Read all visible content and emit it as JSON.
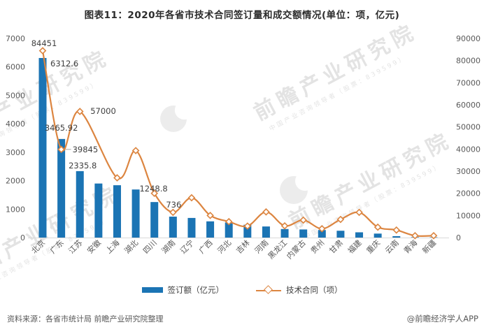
{
  "title": "图表11：2020年各省市技术合同签订量和成交额情况(单位：项，亿元)",
  "colors": {
    "bar": "#1b74b4",
    "line": "#dc8540",
    "marker_fill": "#ffffff",
    "axis_text": "#595959",
    "label_text": "#404040",
    "axis_line": "#d9d9d9",
    "leader_line": "#a6a6a6"
  },
  "chart_data": {
    "type": "bar",
    "subtype": "bar+line combo, dual axis",
    "title": "图表11：2020年各省市技术合同签订量和成交额情况(单位：项，亿元)",
    "categories": [
      "北京",
      "广东",
      "江苏",
      "安徽",
      "上海",
      "湖北",
      "四川",
      "湖南",
      "辽宁",
      "广西",
      "河北",
      "吉林",
      "河南",
      "黑龙江",
      "内蒙古",
      "贵州",
      "甘肃",
      "福建",
      "重庆",
      "云南",
      "青海",
      "新疆"
    ],
    "series": [
      {
        "name": "签订额（亿元）",
        "type": "bar",
        "axis": "left",
        "values": [
          6312.6,
          3465.92,
          2335.8,
          1900,
          1840,
          1690,
          1248.8,
          736,
          690,
          570,
          530,
          450,
          390,
          300,
          285,
          265,
          240,
          185,
          140,
          50,
          15,
          10
        ]
      },
      {
        "name": "技术合同（项）",
        "type": "line",
        "axis": "right",
        "values": [
          84451,
          39845,
          57000,
          null,
          27000,
          39300,
          20000,
          11400,
          18000,
          10000,
          7200,
          5200,
          11600,
          5300,
          7900,
          4000,
          8200,
          11400,
          4700,
          3400,
          850,
          850
        ]
      }
    ],
    "data_labels": {
      "bar": {
        "0": "6312.6",
        "1": "3465.92",
        "2": "2335.8",
        "6": "1248.8",
        "7": "736"
      },
      "line": {
        "0": "84451",
        "1": "39845",
        "2": "57000"
      }
    },
    "axes": {
      "left": {
        "min": 0,
        "max": 7000,
        "step": 1000
      },
      "right": {
        "min": 0,
        "max": 90000,
        "step": 10000
      }
    },
    "grid": false,
    "legend_position": "bottom"
  },
  "legend": {
    "bar_label": "签订额（亿元）",
    "line_label": "技术合同（项）"
  },
  "watermark": {
    "big": "前瞻产业研究院",
    "small": "中国产业咨询领导者（股票：839599）"
  },
  "footer": {
    "source": "资料来源：各省市统计局 前瞻产业研究院整理",
    "brand": "@前瞻经济学人APP"
  }
}
